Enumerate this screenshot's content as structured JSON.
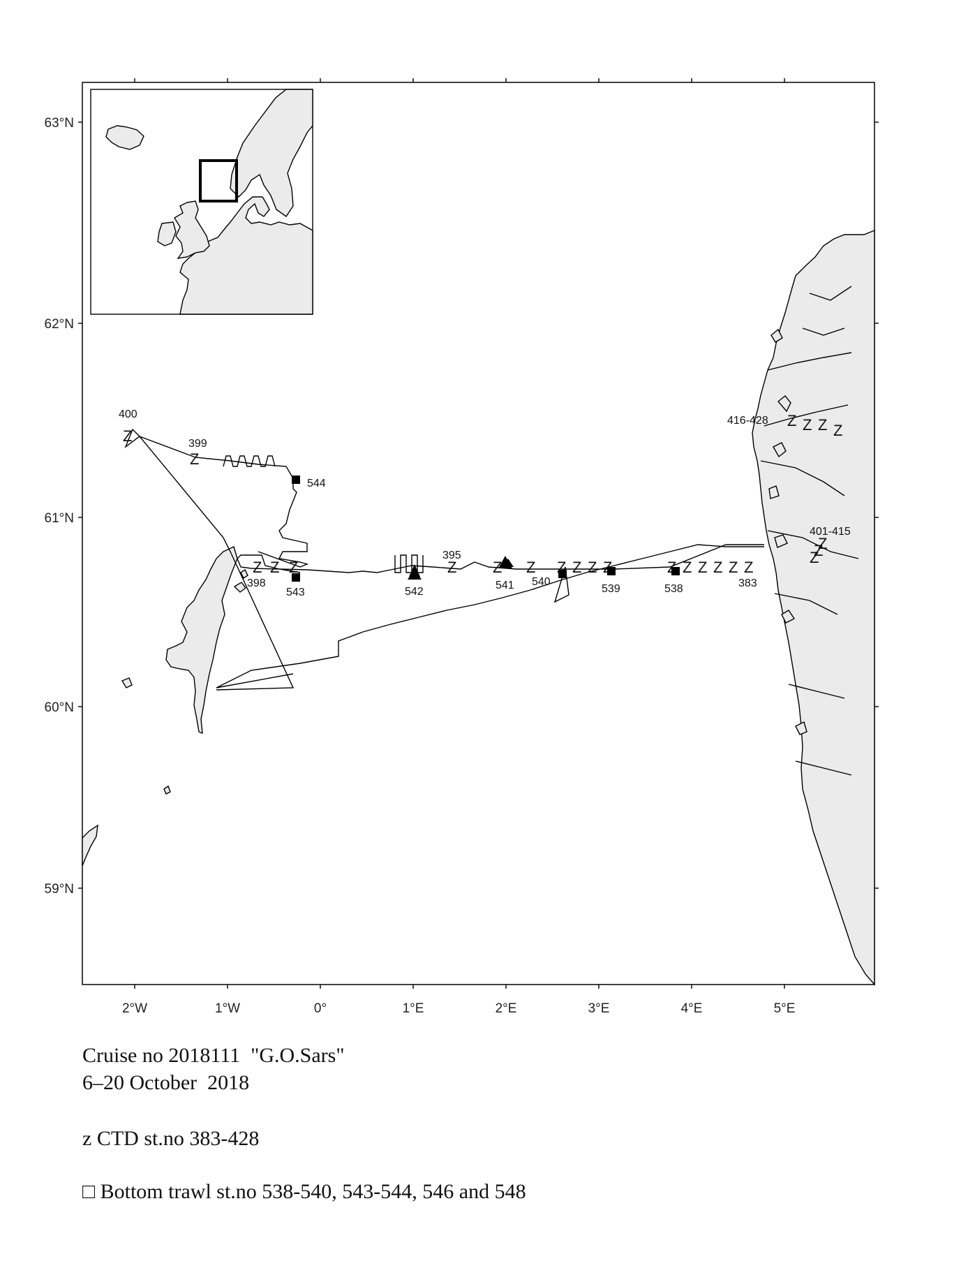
{
  "map": {
    "lat_labels": [
      "63°N",
      "62°N",
      "61°N",
      "60°N",
      "59°N"
    ],
    "lon_labels": [
      "2°W",
      "1°W",
      "0°",
      "1°E",
      "2°E",
      "3°E",
      "4°E",
      "5°E"
    ]
  },
  "station_labels": {
    "s400": "400",
    "s399": "399",
    "s544": "544",
    "s398": "398",
    "s543": "543",
    "s542": "542",
    "s395": "395",
    "s541": "541",
    "s540": "540",
    "s539": "539",
    "s538": "538",
    "s383": "383",
    "s416_428": "416-428",
    "s401_415": "401-415"
  },
  "ctd_symbol": "Z",
  "caption": {
    "line1": "Cruise no 2018111  \"G.O.Sars\"",
    "line2": "6–20 October  2018",
    "line3": "z CTD st.no 383-428",
    "line4": "□ Bottom trawl st.no 538-540, 543-544, 546 and 548"
  }
}
